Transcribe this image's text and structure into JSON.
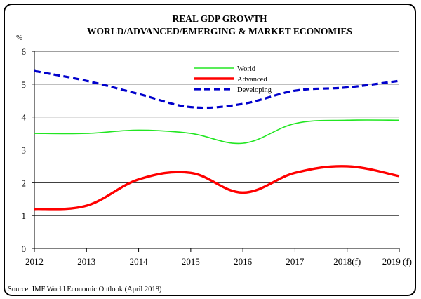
{
  "chart_data": {
    "type": "line",
    "title": "REAL GDP GROWTH",
    "subtitle": "WORLD/ADVANCED/EMERGING & MARKET ECONOMIES",
    "ylabel": "%",
    "xlabel": "",
    "categories": [
      "2012",
      "2013",
      "2014",
      "2015",
      "2016",
      "2017",
      "2018(f)",
      "2019 (f)"
    ],
    "ylim": [
      0,
      6
    ],
    "yticks": [
      "0",
      "1",
      "2",
      "3",
      "4",
      "5",
      "6"
    ],
    "grid": "horizontal",
    "legend_position": "top-center",
    "series": [
      {
        "name": "World",
        "color": "#22e622",
        "style": "solid",
        "values": [
          3.5,
          3.5,
          3.6,
          3.5,
          3.2,
          3.8,
          3.9,
          3.9
        ]
      },
      {
        "name": "Advanced",
        "color": "#ff0000",
        "style": "solid",
        "values": [
          1.2,
          1.3,
          2.1,
          2.3,
          1.7,
          2.3,
          2.5,
          2.2
        ]
      },
      {
        "name": "Developing",
        "color": "#0000cc",
        "style": "dashed",
        "values": [
          5.4,
          5.1,
          4.7,
          4.3,
          4.4,
          4.8,
          4.9,
          5.1
        ]
      }
    ],
    "source": "Source:  IMF World Economic Outlook  (April 2018)"
  }
}
